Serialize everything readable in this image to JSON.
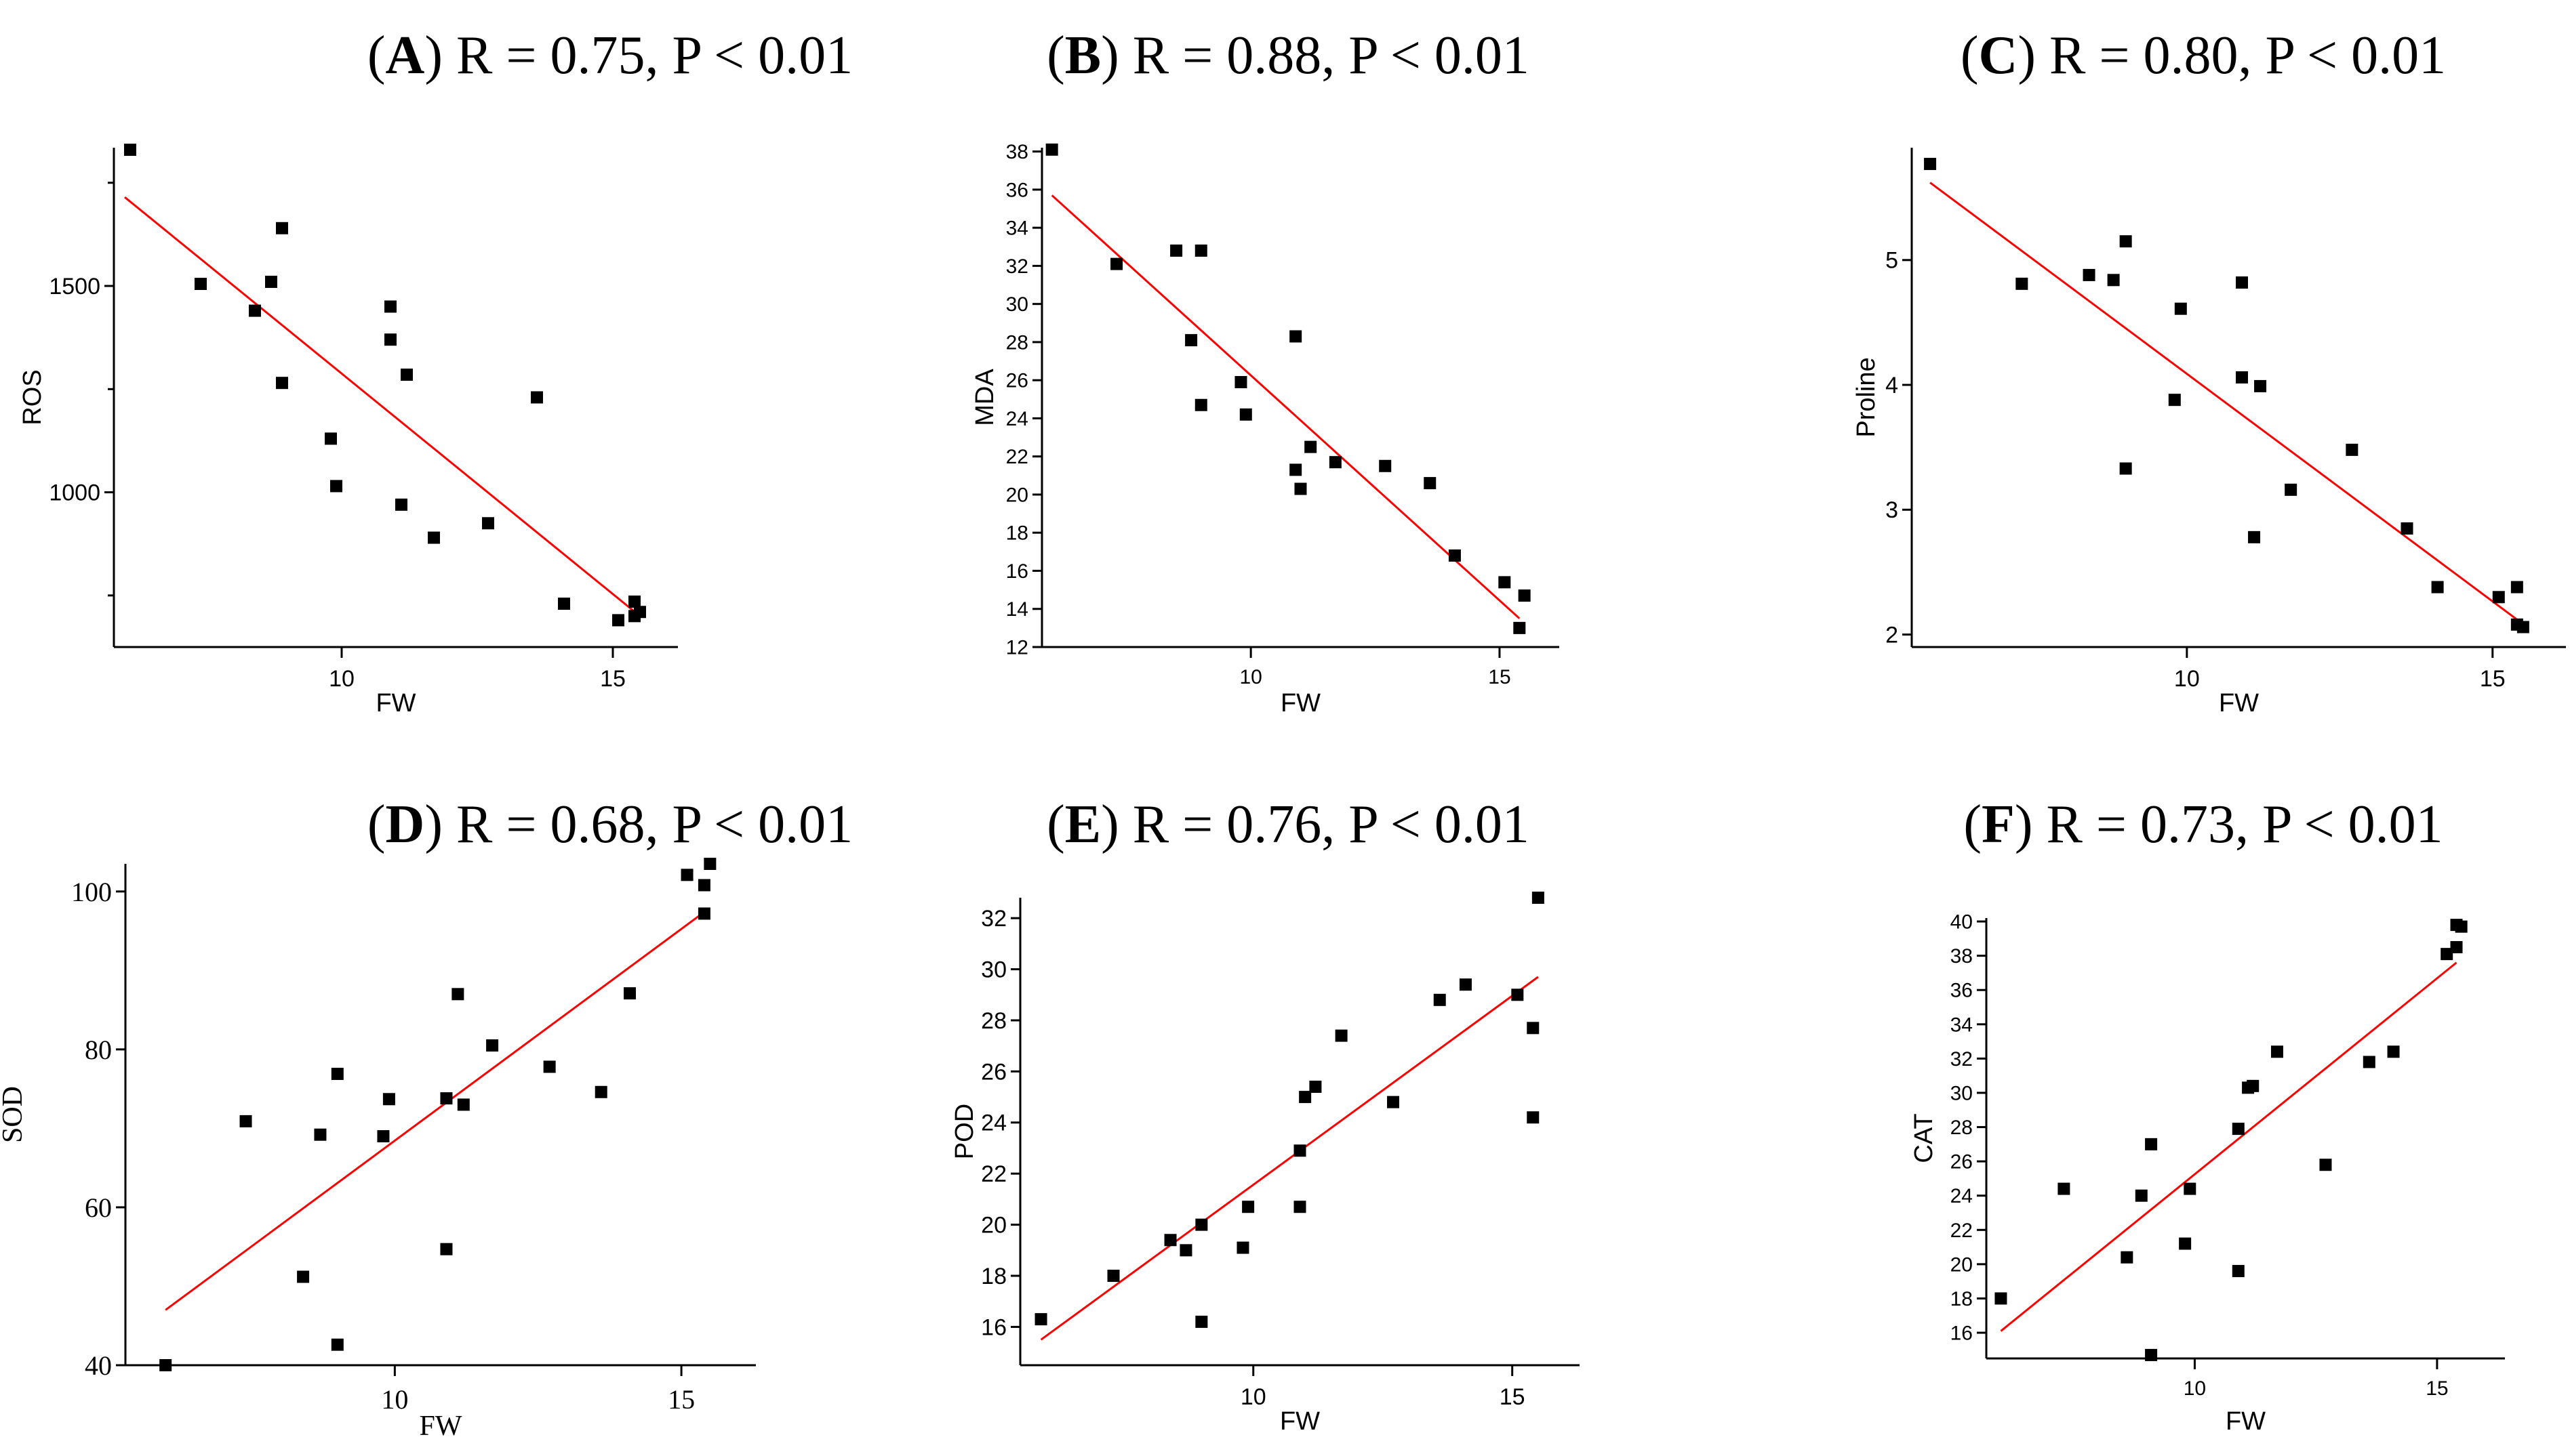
{
  "chart_data": [
    {
      "type": "scatter",
      "panel": "A",
      "title_rest": ") R = 0.75, P < 0.01",
      "xlabel": "FW",
      "ylabel": "ROS",
      "xlim": [
        5.8,
        16.2
      ],
      "ylim": [
        625,
        1835
      ],
      "xticks": [
        10,
        15
      ],
      "yticks": [
        1000,
        1500
      ],
      "yticks_minor": [
        750,
        1250,
        1750
      ],
      "points": [
        [
          6.1,
          1830
        ],
        [
          7.4,
          1505
        ],
        [
          8.4,
          1440
        ],
        [
          8.7,
          1510
        ],
        [
          8.9,
          1640
        ],
        [
          8.9,
          1265
        ],
        [
          9.8,
          1130
        ],
        [
          9.9,
          1015
        ],
        [
          10.9,
          1450
        ],
        [
          10.9,
          1370
        ],
        [
          11.1,
          970
        ],
        [
          11.2,
          1285
        ],
        [
          11.7,
          890
        ],
        [
          12.7,
          925
        ],
        [
          13.6,
          1230
        ],
        [
          14.1,
          730
        ],
        [
          15.1,
          690
        ],
        [
          15.4,
          735
        ],
        [
          15.5,
          710
        ],
        [
          15.4,
          700
        ]
      ],
      "fit": [
        [
          6.0,
          1715
        ],
        [
          15.5,
          700
        ]
      ]
    },
    {
      "type": "scatter",
      "panel": "B",
      "title_rest": ") R = 0.88, P < 0.01",
      "xlabel": "FW",
      "ylabel": "MDA",
      "xlim": [
        5.8,
        16.2
      ],
      "ylim": [
        12,
        38.2
      ],
      "xticks": [
        10,
        15
      ],
      "yticks": [
        12,
        14,
        16,
        18,
        20,
        22,
        24,
        26,
        28,
        30,
        32,
        34,
        36,
        38
      ],
      "points": [
        [
          6.0,
          38.1
        ],
        [
          7.3,
          32.1
        ],
        [
          8.5,
          32.8
        ],
        [
          8.8,
          28.1
        ],
        [
          9.0,
          32.8
        ],
        [
          9.0,
          24.7
        ],
        [
          9.8,
          25.9
        ],
        [
          9.9,
          24.2
        ],
        [
          10.9,
          28.3
        ],
        [
          10.9,
          21.3
        ],
        [
          11.0,
          20.3
        ],
        [
          11.2,
          22.5
        ],
        [
          11.7,
          21.7
        ],
        [
          12.7,
          21.5
        ],
        [
          13.6,
          20.6
        ],
        [
          14.1,
          16.8
        ],
        [
          15.1,
          15.4
        ],
        [
          15.4,
          13.0
        ],
        [
          15.5,
          14.7
        ]
      ],
      "fit": [
        [
          6.0,
          35.7
        ],
        [
          15.4,
          13.5
        ]
      ]
    },
    {
      "type": "scatter",
      "panel": "C",
      "title_rest": ") R = 0.80, P < 0.01",
      "xlabel": "FW",
      "ylabel": "Proline",
      "xlim": [
        5.5,
        16.2
      ],
      "ylim": [
        1.9,
        5.9
      ],
      "xticks": [
        10,
        15
      ],
      "yticks": [
        2,
        3,
        4,
        5
      ],
      "points": [
        [
          5.8,
          5.77
        ],
        [
          7.3,
          4.81
        ],
        [
          8.4,
          4.88
        ],
        [
          8.8,
          4.84
        ],
        [
          9.0,
          5.15
        ],
        [
          9.0,
          3.33
        ],
        [
          9.8,
          3.88
        ],
        [
          9.9,
          4.61
        ],
        [
          10.9,
          4.82
        ],
        [
          10.9,
          4.06
        ],
        [
          11.1,
          2.78
        ],
        [
          11.2,
          3.99
        ],
        [
          11.7,
          3.16
        ],
        [
          12.7,
          3.48
        ],
        [
          13.6,
          2.85
        ],
        [
          14.1,
          2.38
        ],
        [
          15.1,
          2.3
        ],
        [
          15.4,
          2.38
        ],
        [
          15.4,
          2.08
        ],
        [
          15.5,
          2.06
        ]
      ],
      "fit": [
        [
          5.8,
          5.62
        ],
        [
          15.4,
          2.12
        ]
      ]
    },
    {
      "type": "scatter",
      "panel": "D",
      "title_rest": ") R = 0.68, P < 0.01",
      "xlabel": "FW",
      "ylabel": "SOD",
      "xlim": [
        5.3,
        16.3
      ],
      "ylim": [
        40,
        103.5
      ],
      "xticks": [
        10,
        15
      ],
      "yticks": [
        40,
        60,
        80,
        100
      ],
      "points": [
        [
          6.0,
          40.0
        ],
        [
          7.4,
          70.9
        ],
        [
          8.4,
          51.2
        ],
        [
          8.7,
          69.2
        ],
        [
          9.0,
          76.9
        ],
        [
          9.0,
          42.6
        ],
        [
          9.8,
          69.0
        ],
        [
          9.9,
          73.7
        ],
        [
          10.9,
          73.8
        ],
        [
          10.9,
          54.7
        ],
        [
          11.1,
          87.0
        ],
        [
          11.2,
          73.0
        ],
        [
          11.7,
          80.5
        ],
        [
          12.7,
          77.8
        ],
        [
          13.6,
          74.6
        ],
        [
          14.1,
          87.1
        ],
        [
          15.1,
          102.1
        ],
        [
          15.4,
          100.8
        ],
        [
          15.4,
          97.2
        ],
        [
          15.5,
          103.5
        ]
      ],
      "fit": [
        [
          6.0,
          47.0
        ],
        [
          15.4,
          97.4
        ]
      ]
    },
    {
      "type": "scatter",
      "panel": "E",
      "title_rest": ") R = 0.76, P < 0.01",
      "xlabel": "FW",
      "ylabel": "POD",
      "xlim": [
        5.5,
        16.3
      ],
      "ylim": [
        14.5,
        32.8
      ],
      "xticks": [
        10,
        15
      ],
      "yticks": [
        16,
        18,
        20,
        22,
        24,
        26,
        28,
        30,
        32
      ],
      "points": [
        [
          5.9,
          16.3
        ],
        [
          7.3,
          18.0
        ],
        [
          8.4,
          19.4
        ],
        [
          8.7,
          19.0
        ],
        [
          9.0,
          20.0
        ],
        [
          9.0,
          16.2
        ],
        [
          9.8,
          19.1
        ],
        [
          9.9,
          20.7
        ],
        [
          10.9,
          20.7
        ],
        [
          10.9,
          22.9
        ],
        [
          11.0,
          25.0
        ],
        [
          11.2,
          25.4
        ],
        [
          11.7,
          27.4
        ],
        [
          12.7,
          24.8
        ],
        [
          13.6,
          28.8
        ],
        [
          14.1,
          29.4
        ],
        [
          15.1,
          29.0
        ],
        [
          15.4,
          27.7
        ],
        [
          15.4,
          24.2
        ],
        [
          15.5,
          32.8
        ]
      ],
      "fit": [
        [
          5.9,
          15.5
        ],
        [
          15.5,
          29.7
        ]
      ]
    },
    {
      "type": "scatter",
      "panel": "F",
      "title_rest": ") R = 0.73, P < 0.01",
      "xlabel": "FW",
      "ylabel": "CAT",
      "xlim": [
        5.7,
        16.4
      ],
      "ylim": [
        14.5,
        40.2
      ],
      "xticks": [
        10,
        15
      ],
      "yticks": [
        16,
        18,
        20,
        22,
        24,
        26,
        28,
        30,
        32,
        34,
        36,
        38,
        40
      ],
      "points": [
        [
          6.0,
          18.0
        ],
        [
          7.3,
          24.4
        ],
        [
          8.6,
          20.4
        ],
        [
          8.9,
          24.0
        ],
        [
          9.1,
          27.0
        ],
        [
          9.1,
          14.7
        ],
        [
          9.8,
          21.2
        ],
        [
          9.9,
          24.4
        ],
        [
          10.9,
          19.6
        ],
        [
          10.9,
          27.9
        ],
        [
          11.1,
          30.3
        ],
        [
          11.2,
          30.4
        ],
        [
          11.7,
          32.4
        ],
        [
          12.7,
          25.8
        ],
        [
          13.6,
          31.8
        ],
        [
          14.1,
          32.4
        ],
        [
          15.2,
          38.1
        ],
        [
          15.4,
          38.5
        ],
        [
          15.4,
          39.8
        ],
        [
          15.5,
          39.7
        ]
      ],
      "fit": [
        [
          6.0,
          16.1
        ],
        [
          15.4,
          37.6
        ]
      ]
    }
  ]
}
